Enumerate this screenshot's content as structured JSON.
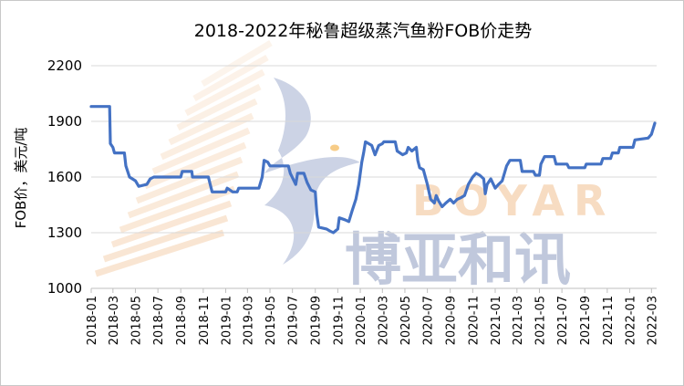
{
  "chart_data": {
    "type": "line",
    "title": "2018-2022年秘鲁超级蒸汽鱼粉FOB价走势",
    "ylabel": "FOB价，美元/吨",
    "xlabel": "",
    "ylim": [
      1000,
      2200
    ],
    "yticks": [
      1000,
      1300,
      1600,
      1900,
      2200
    ],
    "xticks": [
      "2018-01",
      "2018-03",
      "2018-05",
      "2018-07",
      "2018-09",
      "2018-11",
      "2019-01",
      "2019-03",
      "2019-05",
      "2019-07",
      "2019-09",
      "2019-11",
      "2020-01",
      "2020-03",
      "2020-05",
      "2020-07",
      "2020-09",
      "2020-11",
      "2021-01",
      "2021-03",
      "2021-05",
      "2021-07",
      "2021-09",
      "2021-11",
      "2022-01",
      "2022-03"
    ],
    "grid": "horizontal",
    "line_color": "#4472c4",
    "series": [
      {
        "values": [
          [
            "2018-01-01",
            1980
          ],
          [
            "2018-02-20",
            1980
          ],
          [
            "2018-02-22",
            1780
          ],
          [
            "2018-03-01",
            1760
          ],
          [
            "2018-03-05",
            1730
          ],
          [
            "2018-04-01",
            1730
          ],
          [
            "2018-04-05",
            1660
          ],
          [
            "2018-04-15",
            1600
          ],
          [
            "2018-05-01",
            1580
          ],
          [
            "2018-05-10",
            1550
          ],
          [
            "2018-06-01",
            1560
          ],
          [
            "2018-06-10",
            1590
          ],
          [
            "2018-06-20",
            1600
          ],
          [
            "2018-09-01",
            1600
          ],
          [
            "2018-09-05",
            1630
          ],
          [
            "2018-10-01",
            1630
          ],
          [
            "2018-10-03",
            1600
          ],
          [
            "2018-11-15",
            1600
          ],
          [
            "2018-11-20",
            1560
          ],
          [
            "2018-11-25",
            1520
          ],
          [
            "2019-01-01",
            1520
          ],
          [
            "2019-01-05",
            1540
          ],
          [
            "2019-01-20",
            1520
          ],
          [
            "2019-02-01",
            1520
          ],
          [
            "2019-02-05",
            1540
          ],
          [
            "2019-04-01",
            1540
          ],
          [
            "2019-04-10",
            1600
          ],
          [
            "2019-04-15",
            1690
          ],
          [
            "2019-04-25",
            1680
          ],
          [
            "2019-05-01",
            1660
          ],
          [
            "2019-06-20",
            1660
          ],
          [
            "2019-06-25",
            1620
          ],
          [
            "2019-07-05",
            1580
          ],
          [
            "2019-07-10",
            1560
          ],
          [
            "2019-07-15",
            1620
          ],
          [
            "2019-08-01",
            1620
          ],
          [
            "2019-08-10",
            1570
          ],
          [
            "2019-08-20",
            1530
          ],
          [
            "2019-09-01",
            1520
          ],
          [
            "2019-09-05",
            1400
          ],
          [
            "2019-09-10",
            1330
          ],
          [
            "2019-10-01",
            1320
          ],
          [
            "2019-10-10",
            1310
          ],
          [
            "2019-10-20",
            1300
          ],
          [
            "2019-11-01",
            1320
          ],
          [
            "2019-11-05",
            1380
          ],
          [
            "2019-11-20",
            1370
          ],
          [
            "2019-12-01",
            1360
          ],
          [
            "2019-12-10",
            1420
          ],
          [
            "2019-12-20",
            1480
          ],
          [
            "2019-12-28",
            1560
          ],
          [
            "2020-01-05",
            1680
          ],
          [
            "2020-01-10",
            1730
          ],
          [
            "2020-01-15",
            1790
          ],
          [
            "2020-02-01",
            1770
          ],
          [
            "2020-02-10",
            1720
          ],
          [
            "2020-02-20",
            1770
          ],
          [
            "2020-03-01",
            1780
          ],
          [
            "2020-03-05",
            1790
          ],
          [
            "2020-04-05",
            1790
          ],
          [
            "2020-04-10",
            1740
          ],
          [
            "2020-04-25",
            1720
          ],
          [
            "2020-05-05",
            1730
          ],
          [
            "2020-05-10",
            1760
          ],
          [
            "2020-05-20",
            1740
          ],
          [
            "2020-06-01",
            1760
          ],
          [
            "2020-06-05",
            1690
          ],
          [
            "2020-06-10",
            1650
          ],
          [
            "2020-06-20",
            1640
          ],
          [
            "2020-07-01",
            1560
          ],
          [
            "2020-07-10",
            1480
          ],
          [
            "2020-07-20",
            1460
          ],
          [
            "2020-07-25",
            1500
          ],
          [
            "2020-08-01",
            1470
          ],
          [
            "2020-08-10",
            1440
          ],
          [
            "2020-08-20",
            1460
          ],
          [
            "2020-09-01",
            1480
          ],
          [
            "2020-09-10",
            1460
          ],
          [
            "2020-09-20",
            1480
          ],
          [
            "2020-10-01",
            1490
          ],
          [
            "2020-10-10",
            1500
          ],
          [
            "2020-10-20",
            1560
          ],
          [
            "2020-11-01",
            1600
          ],
          [
            "2020-11-10",
            1620
          ],
          [
            "2020-11-20",
            1610
          ],
          [
            "2020-12-01",
            1590
          ],
          [
            "2020-12-05",
            1510
          ],
          [
            "2020-12-10",
            1560
          ],
          [
            "2020-12-20",
            1590
          ],
          [
            "2021-01-01",
            1540
          ],
          [
            "2021-01-10",
            1560
          ],
          [
            "2021-01-20",
            1580
          ],
          [
            "2021-02-01",
            1660
          ],
          [
            "2021-02-10",
            1690
          ],
          [
            "2021-03-10",
            1690
          ],
          [
            "2021-03-15",
            1630
          ],
          [
            "2021-04-15",
            1630
          ],
          [
            "2021-04-20",
            1610
          ],
          [
            "2021-05-01",
            1610
          ],
          [
            "2021-05-05",
            1670
          ],
          [
            "2021-05-15",
            1710
          ],
          [
            "2021-06-10",
            1710
          ],
          [
            "2021-06-15",
            1670
          ],
          [
            "2021-07-15",
            1670
          ],
          [
            "2021-07-20",
            1650
          ],
          [
            "2021-09-01",
            1650
          ],
          [
            "2021-09-05",
            1670
          ],
          [
            "2021-10-15",
            1670
          ],
          [
            "2021-10-20",
            1700
          ],
          [
            "2021-11-10",
            1700
          ],
          [
            "2021-11-15",
            1730
          ],
          [
            "2021-12-01",
            1730
          ],
          [
            "2021-12-05",
            1760
          ],
          [
            "2022-01-10",
            1760
          ],
          [
            "2022-01-15",
            1800
          ],
          [
            "2022-02-20",
            1810
          ],
          [
            "2022-03-01",
            1830
          ],
          [
            "2022-03-10",
            1890
          ]
        ]
      }
    ]
  },
  "watermark": {
    "brand_cn": "博亚和讯",
    "brand_en": "BOYAR"
  }
}
